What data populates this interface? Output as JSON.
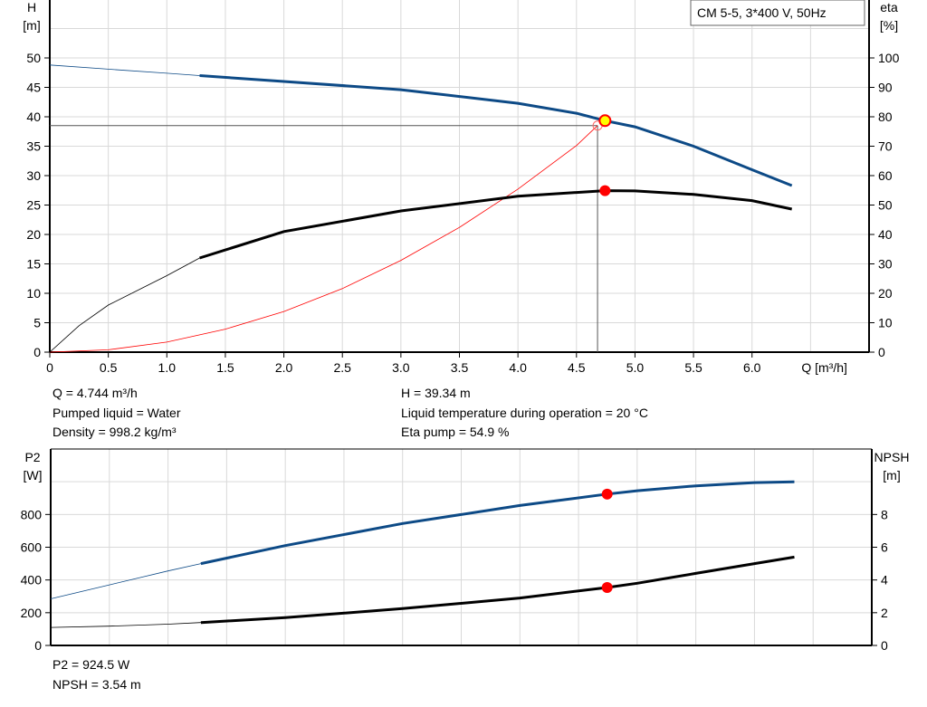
{
  "chart_data": [
    {
      "type": "line",
      "title_box": "CM 5-5, 3*400 V, 50Hz",
      "xlabel": "Q [m³/h]",
      "xlim": [
        0,
        7
      ],
      "xticks": [
        0,
        0.5,
        1.0,
        1.5,
        2.0,
        2.5,
        3.0,
        3.5,
        4.0,
        4.5,
        5.0,
        5.5,
        6.0
      ],
      "xtick_labels": [
        "0",
        "0.5",
        "1.0",
        "1.5",
        "2.0",
        "2.5",
        "3.0",
        "3.5",
        "4.0",
        "4.5",
        "5.0",
        "5.5",
        "6.0"
      ],
      "ylabel_left": [
        "H",
        "[m]"
      ],
      "ylim_left": [
        0,
        60
      ],
      "yticks_left": [
        0,
        5,
        10,
        15,
        20,
        25,
        30,
        35,
        40,
        45,
        50
      ],
      "ylabel_right": [
        "eta",
        "[%]"
      ],
      "ylim_right": [
        0,
        120
      ],
      "yticks_right": [
        0,
        10,
        20,
        30,
        40,
        50,
        60,
        70,
        80,
        90,
        100
      ],
      "grid": true,
      "series": [
        {
          "axis": "left",
          "color": "#0d4a86",
          "thick_from": 1.28,
          "x": [
            0,
            0.5,
            1.0,
            1.28,
            2,
            3,
            4,
            4.5,
            4.744,
            5,
            5.5,
            6,
            6.34
          ],
          "y": [
            48.8,
            48.1,
            47.4,
            47,
            46,
            44.6,
            42.3,
            40.6,
            39.34,
            38.3,
            35,
            31,
            28.3
          ]
        },
        {
          "axis": "right",
          "color": "#000000",
          "thick_from": 1.28,
          "x": [
            0,
            0.25,
            0.5,
            1.0,
            1.28,
            2,
            3,
            4,
            4.744,
            5,
            5.5,
            6,
            6.34
          ],
          "y": [
            0,
            9,
            16,
            26,
            32,
            41,
            48,
            53,
            54.9,
            54.8,
            53.6,
            51.5,
            48.6
          ]
        },
        {
          "axis": "left",
          "color": "#ff0000",
          "thin": true,
          "x": [
            0,
            0.5,
            1,
            1.5,
            2,
            2.5,
            3,
            3.5,
            4,
            4.5,
            4.68
          ],
          "y": [
            0,
            0.4,
            1.7,
            3.9,
            6.9,
            10.8,
            15.6,
            21.2,
            27.7,
            35.1,
            38.5
          ]
        }
      ],
      "duty_point": {
        "Q": 4.744,
        "H": 39.34,
        "eta": 54.9
      },
      "system_point": {
        "Q": 4.68,
        "H": 38.5
      }
    },
    {
      "type": "line",
      "xlim": [
        0,
        7
      ],
      "ylabel_left": [
        "P2",
        "[W]"
      ],
      "ylim_left": [
        0,
        1200
      ],
      "yticks_left": [
        0,
        200,
        400,
        600,
        800
      ],
      "ylabel_right": [
        "NPSH",
        "[m]"
      ],
      "ylim_right": [
        0,
        12
      ],
      "yticks_right": [
        0,
        2,
        4,
        6,
        8
      ],
      "grid": true,
      "series": [
        {
          "axis": "left",
          "color": "#0d4a86",
          "thick_from": 1.28,
          "x": [
            0,
            0.5,
            1,
            1.28,
            2,
            3,
            4,
            4.744,
            5,
            5.5,
            6,
            6.34
          ],
          "y": [
            285,
            370,
            455,
            500,
            610,
            745,
            855,
            924.5,
            945,
            975,
            995,
            1000
          ]
        },
        {
          "axis": "right",
          "color": "#000000",
          "thick_from": 1.28,
          "x": [
            0,
            0.5,
            1,
            1.28,
            2,
            3,
            4,
            4.744,
            5,
            5.5,
            6,
            6.34
          ],
          "y": [
            1.1,
            1.18,
            1.3,
            1.4,
            1.7,
            2.25,
            2.9,
            3.54,
            3.8,
            4.4,
            5.0,
            5.4
          ]
        }
      ],
      "duty_point": {
        "Q": 4.744,
        "P2": 924.5,
        "NPSH": 3.54
      }
    }
  ],
  "info": {
    "q": "Q = 4.744 m³/h",
    "liquid": "Pumped liquid = Water",
    "density": "Density = 998.2 kg/m³",
    "h": "H = 39.34 m",
    "temp": "Liquid temperature during operation = 20 °C",
    "eta": "Eta pump = 54.9 %",
    "p2": "P2 = 924.5 W",
    "npsh": "NPSH = 3.54 m"
  }
}
